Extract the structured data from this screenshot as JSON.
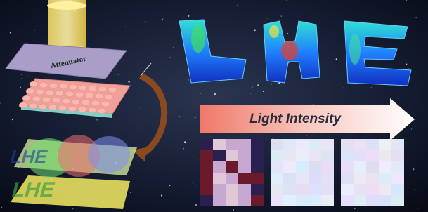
{
  "labels": {
    "attenuator": "Attenuator",
    "arrow": "Light Intensity"
  }
}
